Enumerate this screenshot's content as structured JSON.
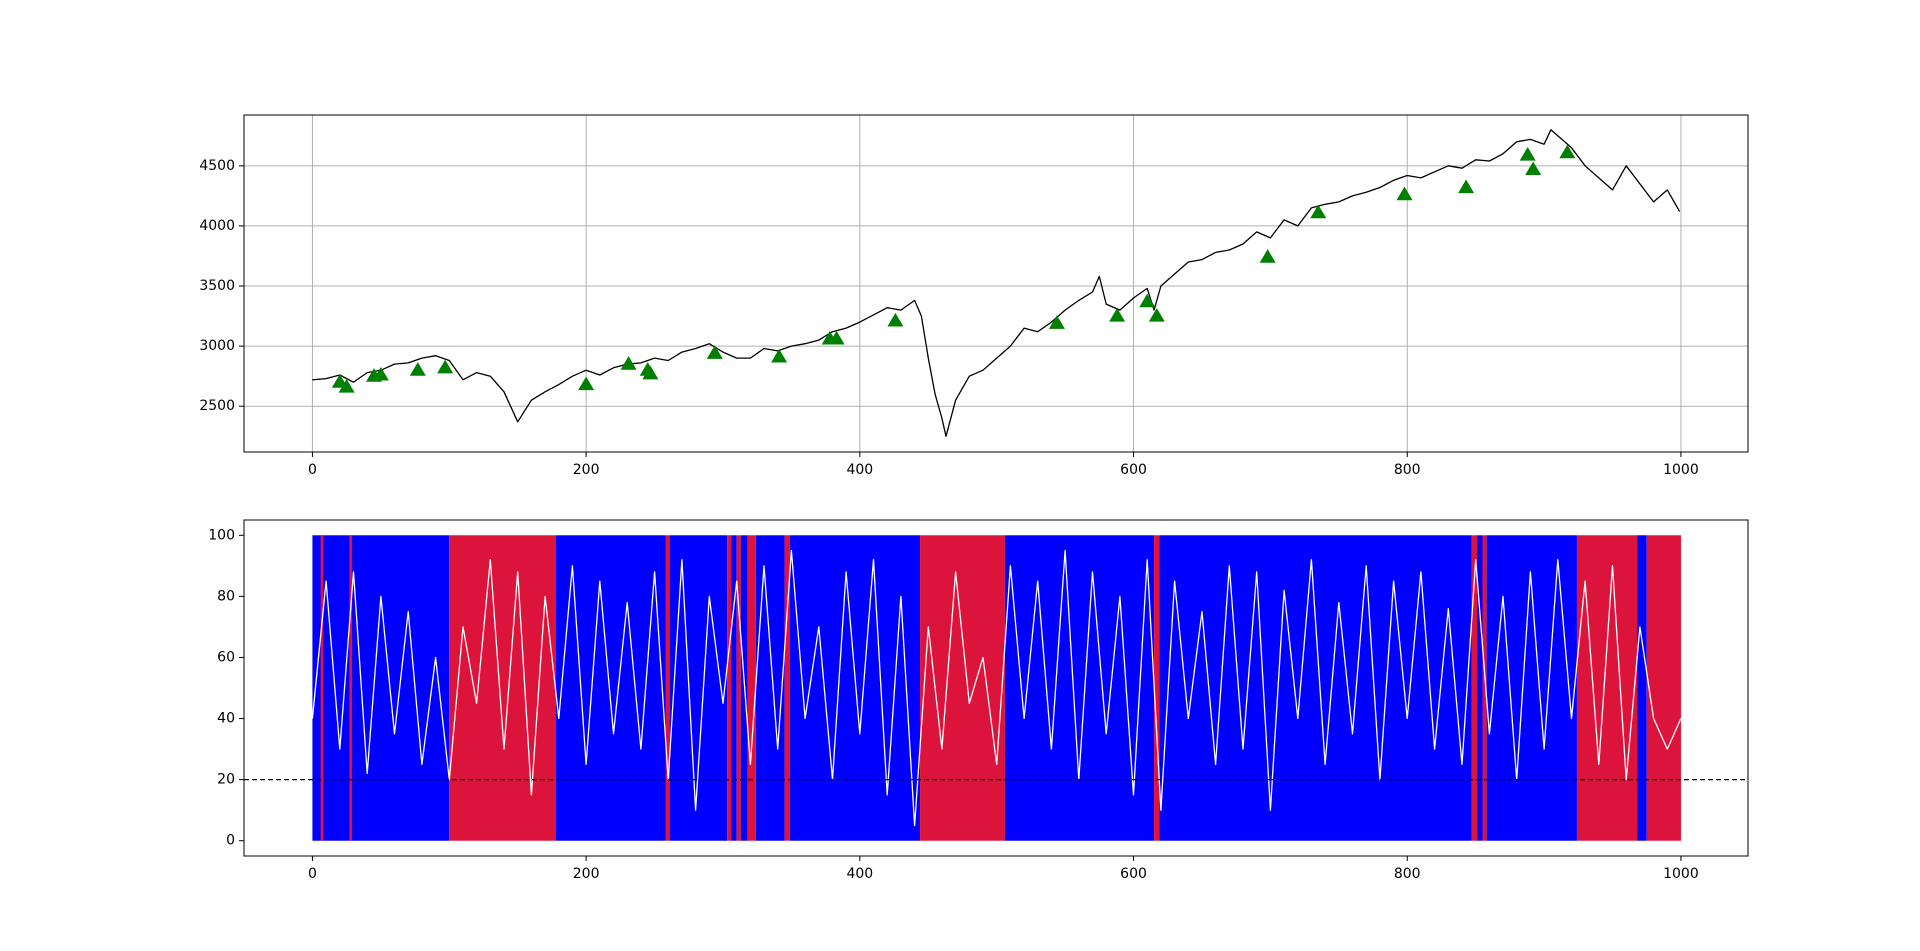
{
  "chart_data": [
    {
      "type": "line",
      "grid": true,
      "xlim": [
        -50,
        1049
      ],
      "ylim": [
        2119,
        4923
      ],
      "xticks": [
        0,
        200,
        400,
        600,
        800,
        1000
      ],
      "yticks": [
        2500,
        3000,
        3500,
        4000,
        4500
      ],
      "series": [
        {
          "color": "#000000",
          "x": [
            0,
            10,
            20,
            30,
            40,
            50,
            60,
            70,
            80,
            90,
            100,
            110,
            120,
            130,
            140,
            150,
            160,
            170,
            180,
            190,
            200,
            210,
            220,
            230,
            240,
            250,
            260,
            270,
            280,
            290,
            300,
            310,
            320,
            330,
            340,
            350,
            360,
            370,
            380,
            390,
            400,
            410,
            420,
            430,
            440,
            445,
            450,
            455,
            460,
            463,
            470,
            480,
            490,
            500,
            510,
            520,
            530,
            540,
            550,
            560,
            570,
            575,
            580,
            590,
            600,
            610,
            615,
            620,
            630,
            640,
            650,
            660,
            670,
            680,
            690,
            700,
            710,
            720,
            730,
            740,
            750,
            760,
            770,
            780,
            790,
            800,
            810,
            820,
            830,
            840,
            850,
            860,
            870,
            880,
            890,
            900,
            905,
            910,
            920,
            930,
            940,
            950,
            960,
            970,
            980,
            990,
            999
          ],
          "values": [
            2720,
            2730,
            2760,
            2700,
            2780,
            2800,
            2850,
            2860,
            2900,
            2920,
            2880,
            2720,
            2780,
            2750,
            2620,
            2370,
            2550,
            2620,
            2680,
            2750,
            2800,
            2760,
            2820,
            2850,
            2860,
            2900,
            2880,
            2950,
            2980,
            3020,
            2950,
            2900,
            2900,
            2980,
            2960,
            3000,
            3020,
            3050,
            3120,
            3150,
            3200,
            3260,
            3320,
            3300,
            3380,
            3250,
            2900,
            2600,
            2400,
            2250,
            2550,
            2750,
            2800,
            2900,
            3000,
            3150,
            3120,
            3200,
            3300,
            3380,
            3450,
            3580,
            3350,
            3300,
            3400,
            3480,
            3300,
            3500,
            3600,
            3700,
            3720,
            3780,
            3800,
            3850,
            3950,
            3900,
            4050,
            4000,
            4150,
            4180,
            4200,
            4250,
            4280,
            4320,
            4380,
            4420,
            4400,
            4450,
            4500,
            4480,
            4550,
            4540,
            4600,
            4700,
            4720,
            4680,
            4800,
            4750,
            4650,
            4500,
            4400,
            4300,
            4500,
            4350,
            4200,
            4300,
            4120
          ]
        }
      ],
      "markers": {
        "color": "#008000",
        "x": [
          20,
          25,
          45,
          50,
          77,
          97,
          200,
          231,
          245,
          247,
          294,
          341,
          378,
          383,
          426,
          544,
          588,
          610,
          617,
          698,
          735,
          798,
          843,
          888,
          892,
          917
        ],
        "values": [
          2700,
          2660,
          2750,
          2760,
          2800,
          2820,
          2680,
          2850,
          2800,
          2770,
          2940,
          2910,
          3060,
          3060,
          3210,
          3190,
          3250,
          3370,
          3250,
          3740,
          4110,
          4260,
          4320,
          4590,
          4470,
          4610
        ]
      }
    },
    {
      "type": "line",
      "grid": false,
      "xlim": [
        -50,
        1049
      ],
      "ylim": [
        -5,
        105
      ],
      "xticks": [
        0,
        200,
        400,
        600,
        800,
        1000
      ],
      "yticks": [
        0,
        20,
        40,
        60,
        80,
        100
      ],
      "regions": [
        {
          "x0": 0,
          "x1": 100,
          "color": "#0000ff"
        },
        {
          "x0": 6,
          "x1": 8,
          "color": "#dc143c"
        },
        {
          "x0": 27,
          "x1": 29,
          "color": "#dc143c"
        },
        {
          "x0": 100,
          "x1": 178,
          "color": "#dc143c"
        },
        {
          "x0": 178,
          "x1": 258,
          "color": "#0000ff"
        },
        {
          "x0": 258,
          "x1": 261,
          "color": "#dc143c"
        },
        {
          "x0": 261,
          "x1": 303,
          "color": "#0000ff"
        },
        {
          "x0": 303,
          "x1": 306,
          "color": "#dc143c"
        },
        {
          "x0": 306,
          "x1": 310,
          "color": "#0000ff"
        },
        {
          "x0": 310,
          "x1": 313,
          "color": "#dc143c"
        },
        {
          "x0": 313,
          "x1": 318,
          "color": "#0000ff"
        },
        {
          "x0": 318,
          "x1": 324,
          "color": "#dc143c"
        },
        {
          "x0": 324,
          "x1": 345,
          "color": "#0000ff"
        },
        {
          "x0": 345,
          "x1": 349,
          "color": "#dc143c"
        },
        {
          "x0": 349,
          "x1": 444,
          "color": "#0000ff"
        },
        {
          "x0": 444,
          "x1": 506,
          "color": "#dc143c"
        },
        {
          "x0": 506,
          "x1": 615,
          "color": "#0000ff"
        },
        {
          "x0": 615,
          "x1": 619,
          "color": "#dc143c"
        },
        {
          "x0": 619,
          "x1": 847,
          "color": "#0000ff"
        },
        {
          "x0": 847,
          "x1": 851,
          "color": "#dc143c"
        },
        {
          "x0": 851,
          "x1": 855,
          "color": "#0000ff"
        },
        {
          "x0": 855,
          "x1": 858,
          "color": "#dc143c"
        },
        {
          "x0": 858,
          "x1": 924,
          "color": "#0000ff"
        },
        {
          "x0": 924,
          "x1": 968,
          "color": "#dc143c"
        },
        {
          "x0": 968,
          "x1": 975,
          "color": "#0000ff"
        },
        {
          "x0": 975,
          "x1": 1000,
          "color": "#dc143c"
        }
      ],
      "hline": 20,
      "hline_color": "#000000",
      "series": [
        {
          "color": "#ffffff",
          "x": [
            0,
            10,
            20,
            30,
            40,
            50,
            60,
            70,
            80,
            90,
            100,
            110,
            120,
            130,
            140,
            150,
            160,
            170,
            180,
            190,
            200,
            210,
            220,
            230,
            240,
            250,
            260,
            270,
            280,
            290,
            300,
            310,
            320,
            330,
            340,
            350,
            360,
            370,
            380,
            390,
            400,
            410,
            420,
            430,
            440,
            450,
            460,
            470,
            480,
            490,
            500,
            510,
            520,
            530,
            540,
            550,
            560,
            570,
            580,
            590,
            600,
            610,
            620,
            630,
            640,
            650,
            660,
            670,
            680,
            690,
            700,
            710,
            720,
            730,
            740,
            750,
            760,
            770,
            780,
            790,
            800,
            810,
            820,
            830,
            840,
            850,
            860,
            870,
            880,
            890,
            900,
            910,
            920,
            930,
            940,
            950,
            960,
            970,
            980,
            990,
            1000
          ],
          "values": [
            40,
            85,
            30,
            88,
            22,
            80,
            35,
            75,
            25,
            60,
            20,
            70,
            45,
            92,
            30,
            88,
            15,
            80,
            40,
            90,
            25,
            85,
            35,
            78,
            30,
            88,
            20,
            92,
            10,
            80,
            45,
            85,
            25,
            90,
            30,
            95,
            40,
            70,
            20,
            88,
            35,
            92,
            15,
            80,
            5,
            70,
            30,
            88,
            45,
            60,
            25,
            90,
            40,
            85,
            30,
            95,
            20,
            88,
            35,
            80,
            15,
            92,
            10,
            85,
            40,
            75,
            25,
            90,
            30,
            88,
            10,
            82,
            40,
            92,
            25,
            78,
            35,
            90,
            20,
            85,
            40,
            88,
            30,
            76,
            25,
            92,
            35,
            80,
            20,
            88,
            30,
            92,
            40,
            85,
            25,
            90,
            20,
            70,
            40,
            30,
            40
          ]
        }
      ]
    }
  ]
}
